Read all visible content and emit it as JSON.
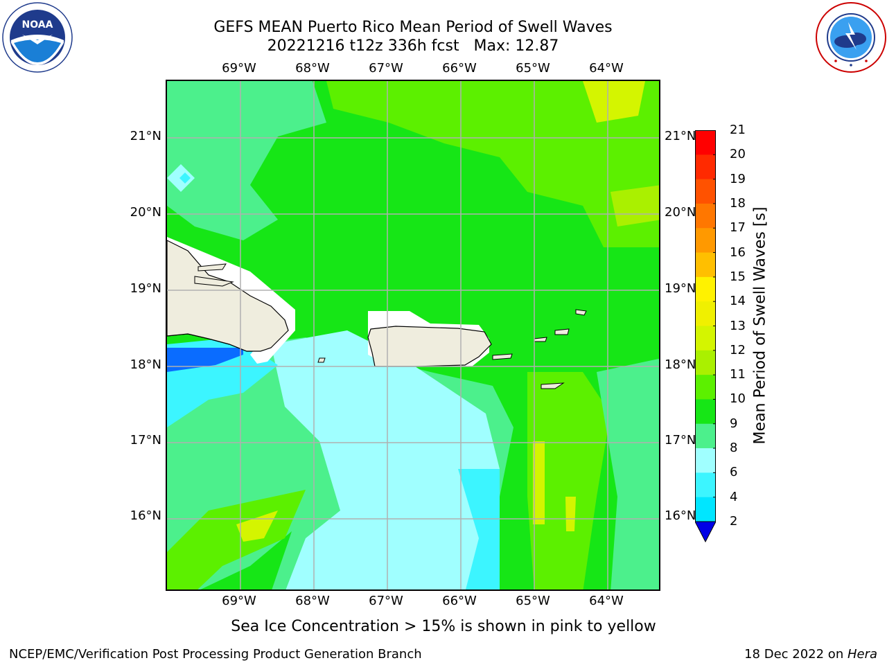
{
  "header": {
    "title_line1": "GEFS MEAN Puerto Rico Mean Period of Swell Waves",
    "title_line2": "20221216 t12z 336h fcst   Max: 12.87"
  },
  "logos": {
    "left": {
      "name": "noaa-logo",
      "text": "NOAA",
      "ring_text": "NATIONAL OCEANIC AND ATMOSPHERIC ADMINISTRATION • U.S. DEPARTMENT OF COMMERCE"
    },
    "right": {
      "name": "nws-logo",
      "ring_text": "NATIONAL WEATHER SERVICE"
    }
  },
  "map": {
    "longitudes": [
      "69°W",
      "68°W",
      "67°W",
      "66°W",
      "65°W",
      "64°W"
    ],
    "latitudes": [
      "21°N",
      "20°N",
      "19°N",
      "18°N",
      "17°N",
      "16°N"
    ],
    "land_color": "#efedde",
    "grid_color": "#b0b0b0"
  },
  "colorbar": {
    "title": "Mean Period of Swell Waves [s]",
    "ticks": [
      "21",
      "20",
      "19",
      "18",
      "17",
      "16",
      "15",
      "14",
      "13",
      "12",
      "11",
      "10",
      "9",
      "8",
      "6",
      "4",
      "2"
    ],
    "colors": [
      "#0000e6",
      "#0a6cff",
      "#00e6ff",
      "#3cf5ff",
      "#a0ffff",
      "#4cf08c",
      "#16e616",
      "#5cf000",
      "#aaf000",
      "#d4f500",
      "#f0f000",
      "#fff200",
      "#ffbf00",
      "#ff9900",
      "#ff7700",
      "#ff5200",
      "#ff2a00",
      "#ff0000"
    ]
  },
  "notes": {
    "ice": "Sea Ice Concentration > 15% is shown in pink to yellow"
  },
  "footer": {
    "left": "NCEP/EMC/Verification Post Processing Product Generation Branch",
    "right_prefix": "18 Dec 2022 on ",
    "right_machine": "Hera"
  }
}
